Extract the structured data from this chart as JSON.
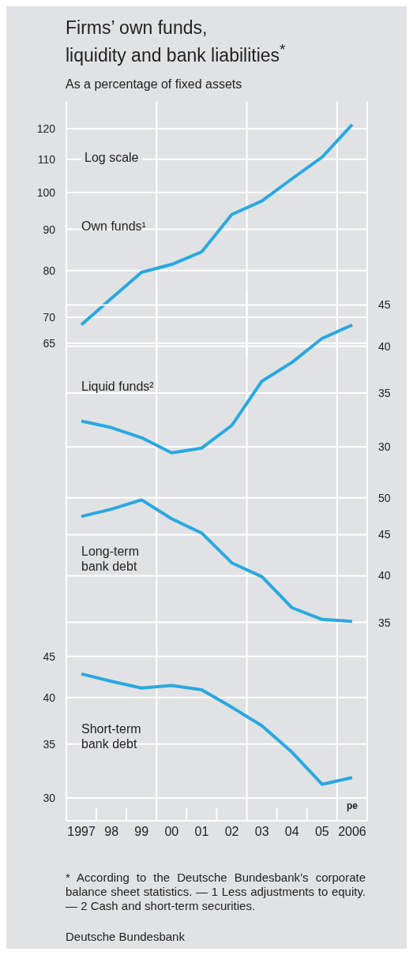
{
  "chart_data": [
    {
      "type": "line",
      "title": "Firms’ own funds,\nliquidity and bank liabilities$^{*}$",
      "subtitle": "As a percentage of fixed assets",
      "categories": [
        "1997",
        "98",
        "99",
        "00",
        "01",
        "02",
        "03",
        "04",
        "05",
        "2006"
      ],
      "series": [
        {
          "name": "Own funds¹",
          "color": "#29a8e0",
          "values": [
            68.5,
            73.9,
            79.6,
            81.4,
            84.4,
            93.9,
            97.6,
            104.0,
            110.6,
            121.4
          ]
        }
      ],
      "ylim": [
        62.8,
        129.6
      ],
      "yticks": [
        65,
        70,
        80,
        90,
        100,
        110,
        120
      ],
      "log": true,
      "grid": true,
      "legend": false,
      "marker": "none",
      "line_style": "solid",
      "tick_labels": "y",
      "annotations": [
        "Log scale"
      ]
    },
    {
      "type": "line",
      "categories": [
        "1997",
        "98",
        "99",
        "00",
        "01",
        "02",
        "03",
        "04",
        "05",
        "2006"
      ],
      "series": [
        {
          "name": "Liquid funds²",
          "color": "#29a8e0",
          "axis": "y2",
          "values": [
            32.3,
            31.7,
            30.8,
            29.5,
            29.9,
            31.9,
            36.2,
            38.2,
            40.9,
            42.5
          ]
        }
      ],
      "y2lim": [
        27.8,
        46.7
      ],
      "y2ticks": [
        30,
        35,
        40,
        45
      ],
      "log": "y2",
      "grid": true,
      "legend": false,
      "marker": "none",
      "line_style": "solid",
      "tick_labels": "y"
    },
    {
      "type": "line",
      "categories": [
        "1997",
        "98",
        "99",
        "00",
        "01",
        "02",
        "03",
        "04",
        "05",
        "2006"
      ],
      "series": [
        {
          "name": "Long-term bank debt",
          "color": "#29a8e0",
          "axis": "y2",
          "values": [
            47.4,
            48.4,
            49.7,
            47.1,
            45.2,
            41.5,
            39.9,
            36.5,
            35.3,
            35.1
          ]
        }
      ],
      "y2lim": [
        32.6,
        53.6
      ],
      "y2ticks": [
        35,
        40,
        45,
        50
      ],
      "log": "y2",
      "grid": true,
      "legend": false,
      "marker": "none",
      "line_style": "solid",
      "tick_labels": "y"
    },
    {
      "type": "line",
      "categories": [
        "1997",
        "98",
        "99",
        "00",
        "01",
        "02",
        "03",
        "04",
        "05",
        "2006"
      ],
      "series": [
        {
          "name": "Short-term bank debt",
          "color": "#29a8e0",
          "values": [
            42.8,
            41.9,
            41.1,
            41.4,
            40.9,
            38.9,
            36.9,
            34.2,
            31.2,
            31.8
          ]
        }
      ],
      "ylim": [
        28.1,
        46.2
      ],
      "yticks": [
        30,
        35,
        40,
        45
      ],
      "log": true,
      "grid": true,
      "legend": false,
      "marker": "none",
      "line_style": "solid",
      "annotations": [
        "pe",
        "* According to the Deutsche Bundesbank’s corporate balance sheet statistics. — 1 Less adjustments to equity. — 2 Cash and short-term securities.",
        "Deutsche Bundesbank"
      ]
    }
  ]
}
